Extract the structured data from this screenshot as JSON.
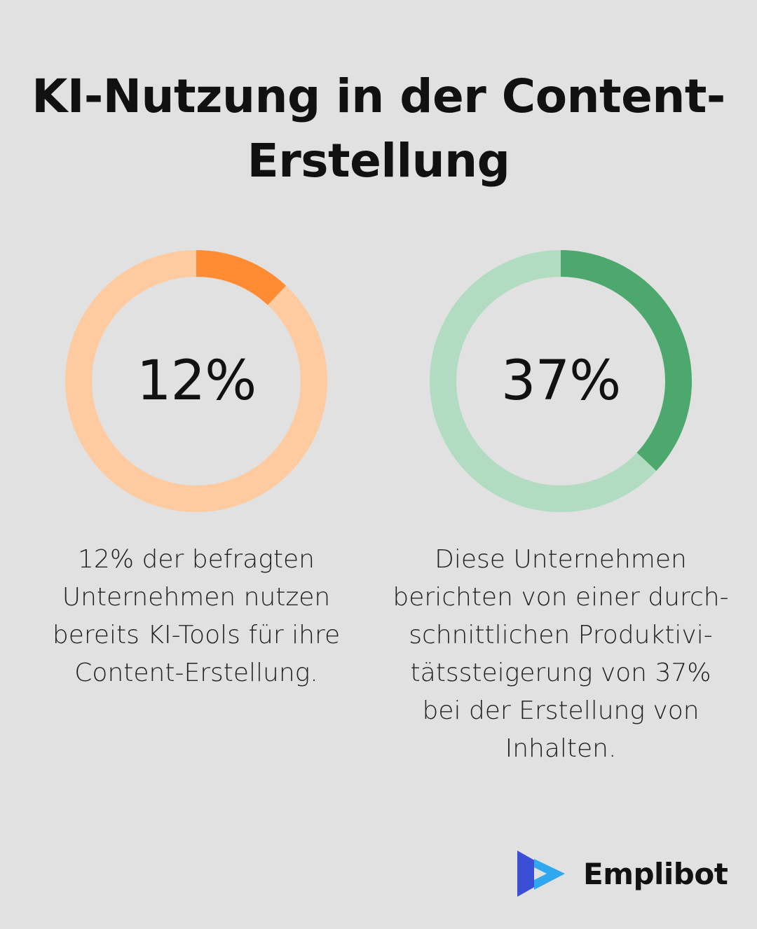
{
  "title": {
    "line1": "KI-Nutzung in der Content-",
    "line2": "Erstellung"
  },
  "chart_data": [
    {
      "type": "pie",
      "values": [
        12,
        88
      ],
      "center_label": "12%",
      "colors": {
        "value": "#ff8c33",
        "track": "#fecba1"
      },
      "description": [
        "12% der befragten",
        "Unternehmen nutzen",
        "bereits KI-Tools für ihre",
        "Content-Erstellung."
      ]
    },
    {
      "type": "pie",
      "values": [
        37,
        63
      ],
      "center_label": "37%",
      "colors": {
        "value": "#4ca86c",
        "track": "#b2dcc2"
      },
      "description": [
        "Diese Unternehmen",
        "berichten von einer durch-",
        "schnittlichen Produktivi-",
        "tätssteigerung von 37%",
        "bei der Erstellung von",
        "Inhalten."
      ]
    }
  ],
  "brand": {
    "name": "Emplibot",
    "icon": "emplibot-logo-icon",
    "colors": {
      "dark": "#3a4fd6",
      "light": "#2fa8f0"
    }
  }
}
